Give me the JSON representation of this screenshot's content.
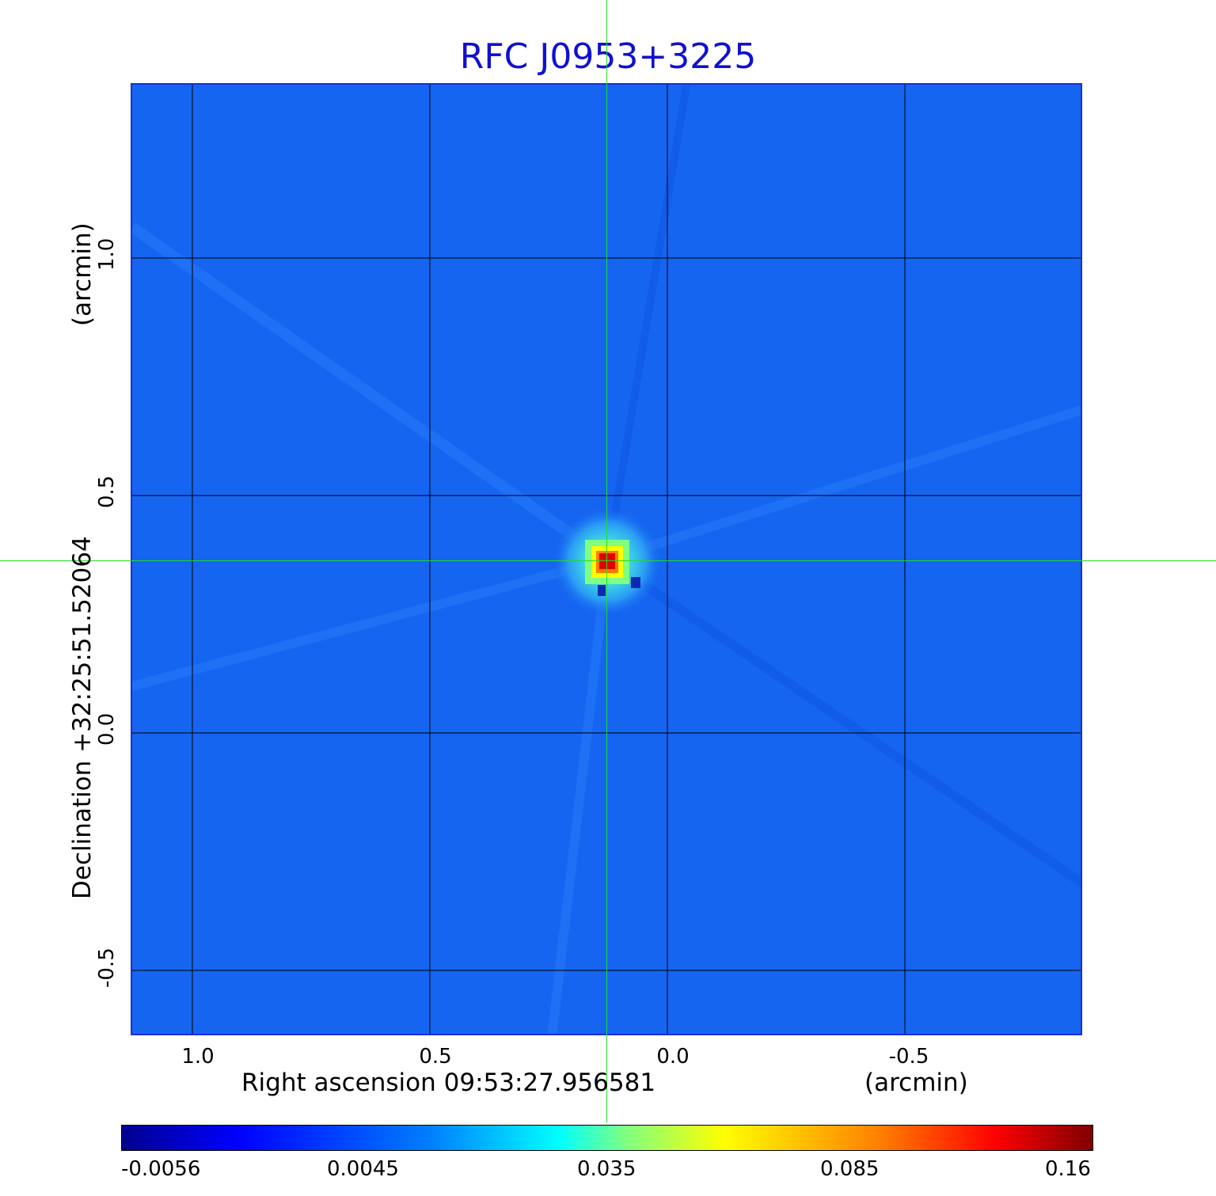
{
  "title": "RFC J0953+3225",
  "x_axis": {
    "label": "Right ascension  09:53:27.956581",
    "unit": "(arcmin)",
    "ticks": [
      "1.0",
      "0.5",
      "0.0",
      "-0.5"
    ]
  },
  "y_axis": {
    "label": "Declination  +32:25:51.52064",
    "unit": "(arcmin)",
    "ticks": [
      "1.0",
      "0.5",
      "0.0",
      "-0.5"
    ]
  },
  "colorbar": {
    "colormap": "jet",
    "ticks": [
      "-0.0056",
      "0.0045",
      "0.035",
      "0.085",
      "0.16"
    ]
  },
  "colors": {
    "title": "#1010d0",
    "crosshair": "#22dd22",
    "background_field": "#1565f0"
  }
}
